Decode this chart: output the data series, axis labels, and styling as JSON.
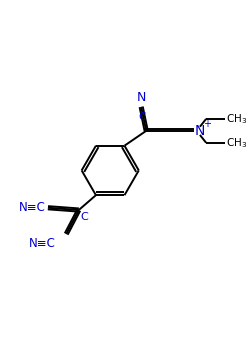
{
  "background_color": "#ffffff",
  "bond_color": "#000000",
  "blue": "#0000cc",
  "black": "#000000",
  "figure_width": 2.5,
  "figure_height": 3.5,
  "dpi": 100,
  "lw": 1.4,
  "xlim": [
    0,
    10
  ],
  "ylim": [
    0,
    14
  ]
}
